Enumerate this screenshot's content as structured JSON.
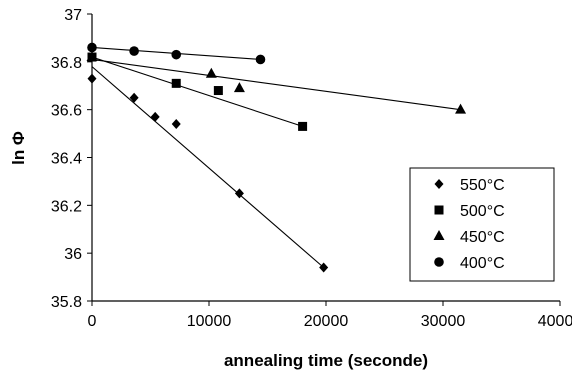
{
  "chart_data": {
    "type": "scatter",
    "xlabel": "annealing time (seconde)",
    "ylabel": "ln Φ",
    "xlim": [
      0,
      40000
    ],
    "ylim": [
      35.8,
      37
    ],
    "x_ticks": [
      "0",
      "10000",
      "20000",
      "30000",
      "40000"
    ],
    "y_ticks": [
      "35.8",
      "36",
      "36.2",
      "36.4",
      "36.6",
      "36.8",
      "37"
    ],
    "grid": false,
    "legend_position": "bottom-right",
    "series": [
      {
        "name": "550°C",
        "marker": "diamond",
        "points": [
          [
            0,
            36.73
          ],
          [
            3600,
            36.65
          ],
          [
            5400,
            36.57
          ],
          [
            7200,
            36.54
          ],
          [
            12600,
            36.25
          ],
          [
            19800,
            35.94
          ]
        ],
        "fit": [
          [
            0,
            36.78
          ],
          [
            19800,
            35.94
          ]
        ]
      },
      {
        "name": "500°C",
        "marker": "square",
        "points": [
          [
            0,
            36.82
          ],
          [
            7200,
            36.71
          ],
          [
            10800,
            36.68
          ],
          [
            18000,
            36.53
          ]
        ],
        "fit": [
          [
            0,
            36.82
          ],
          [
            18000,
            36.53
          ]
        ]
      },
      {
        "name": "450°C",
        "marker": "triangle",
        "points": [
          [
            0,
            36.82
          ],
          [
            10200,
            36.75
          ],
          [
            12600,
            36.69
          ],
          [
            31500,
            36.6
          ]
        ],
        "fit": [
          [
            0,
            36.81
          ],
          [
            31500,
            36.6
          ]
        ]
      },
      {
        "name": "400°C",
        "marker": "circle",
        "points": [
          [
            0,
            36.86
          ],
          [
            3600,
            36.845
          ],
          [
            7200,
            36.83
          ],
          [
            14400,
            36.81
          ]
        ],
        "fit": [
          [
            0,
            36.86
          ],
          [
            14400,
            36.81
          ]
        ]
      }
    ]
  }
}
